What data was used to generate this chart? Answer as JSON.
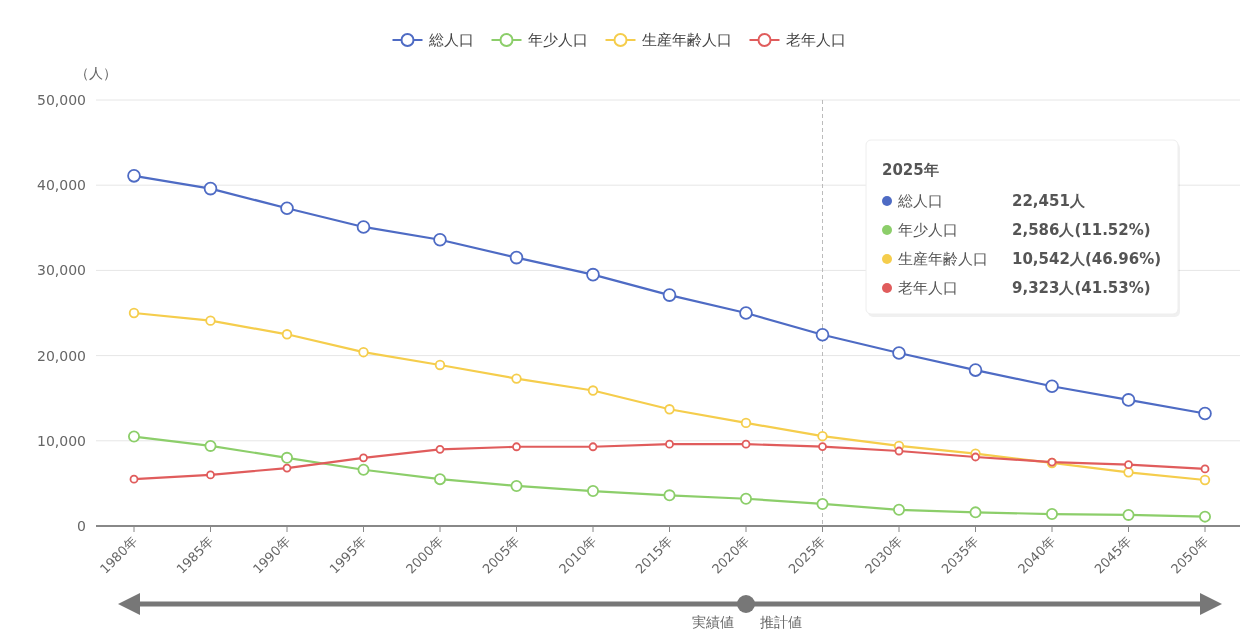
{
  "chart_data": {
    "type": "line",
    "ylabel": "（人）",
    "categories": [
      "1980年",
      "1985年",
      "1990年",
      "1995年",
      "2000年",
      "2005年",
      "2010年",
      "2015年",
      "2020年",
      "2025年",
      "2030年",
      "2035年",
      "2040年",
      "2045年",
      "2050年"
    ],
    "series": [
      {
        "name": "総人口",
        "color": "#4e6bc4",
        "values": [
          41100,
          39600,
          37300,
          35100,
          33600,
          31500,
          29500,
          27100,
          25000,
          22451,
          20300,
          18300,
          16400,
          14800,
          13200
        ]
      },
      {
        "name": "年少人口",
        "color": "#8cce6a",
        "values": [
          10500,
          9400,
          8000,
          6600,
          5500,
          4700,
          4100,
          3600,
          3200,
          2586,
          1900,
          1600,
          1400,
          1300,
          1100
        ]
      },
      {
        "name": "生産年齢人口",
        "color": "#f5cd4c",
        "values": [
          25000,
          24100,
          22500,
          20400,
          18900,
          17300,
          15900,
          13700,
          12100,
          10542,
          9400,
          8500,
          7400,
          6300,
          5400
        ]
      },
      {
        "name": "老年人口",
        "color": "#e05c5c",
        "values": [
          5500,
          6000,
          6800,
          8000,
          9000,
          9300,
          9300,
          9600,
          9600,
          9323,
          8800,
          8100,
          7500,
          7200,
          6700
        ]
      }
    ],
    "ylim": [
      0,
      50000
    ],
    "yticks": [
      {
        "value": 0,
        "label": "0"
      },
      {
        "value": 10000,
        "label": "10,000"
      },
      {
        "value": 20000,
        "label": "20,000"
      },
      {
        "value": 30000,
        "label": "30,000"
      },
      {
        "value": 40000,
        "label": "40,000"
      },
      {
        "value": 50000,
        "label": "50,000"
      }
    ],
    "grid": "y",
    "legend": "top",
    "marker": "circle",
    "line_style": "solid",
    "ref_lines": [
      {
        "axis": "x",
        "value": "2025年",
        "color": "#bbbbbb",
        "line_style": "dashed"
      }
    ],
    "annotations": [
      "2025年",
      "22,451人",
      "2,586人(11.52%)",
      "10,542人(46.96%)",
      "9,323人(41.53%)",
      "実績値",
      "推計値"
    ]
  }
}
